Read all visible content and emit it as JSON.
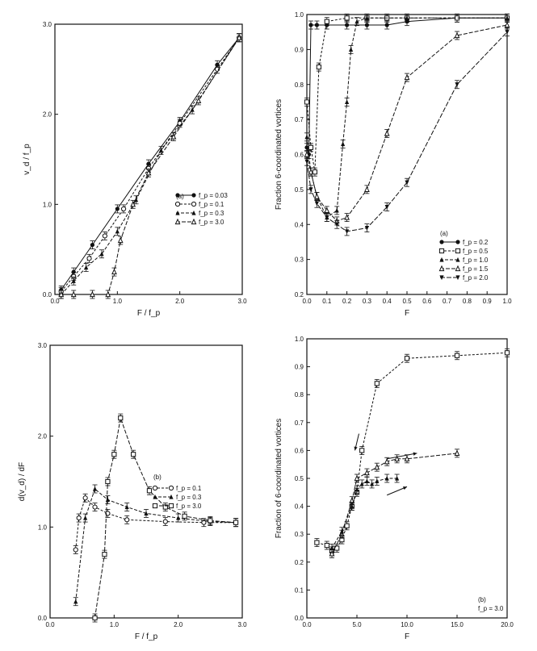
{
  "chart_data": [
    {
      "id": "tl",
      "type": "line",
      "panel_tag": "(a)",
      "xlabel": "F / f_p",
      "ylabel": "v_d / f_p",
      "xlim": [
        0.0,
        3.0
      ],
      "ylim": [
        0.0,
        3.0
      ],
      "xticks": [
        "0.0",
        "1.0",
        "2.0",
        "3.0"
      ],
      "yticks": [
        "0.0",
        "1.0",
        "2.0",
        "3.0"
      ],
      "legend": [
        "f_p = 0.03",
        "f_p = 0.1",
        "f_p = 0.3",
        "f_p = 3.0"
      ],
      "series": [
        {
          "name": "f_p = 0.03",
          "marker": "filled-circle",
          "dash": "",
          "points": [
            [
              0.1,
              0.05
            ],
            [
              0.3,
              0.25
            ],
            [
              0.6,
              0.55
            ],
            [
              1.0,
              0.95
            ],
            [
              1.5,
              1.45
            ],
            [
              2.0,
              1.92
            ],
            [
              2.6,
              2.55
            ],
            [
              2.95,
              2.85
            ]
          ]
        },
        {
          "name": "f_p = 0.1",
          "marker": "open-circle",
          "dash": "3,2",
          "points": [
            [
              0.1,
              0.03
            ],
            [
              0.3,
              0.2
            ],
            [
              0.55,
              0.4
            ],
            [
              0.8,
              0.65
            ],
            [
              1.1,
              0.95
            ],
            [
              1.5,
              1.4
            ],
            [
              2.0,
              1.9
            ],
            [
              2.6,
              2.5
            ],
            [
              2.95,
              2.85
            ]
          ]
        },
        {
          "name": "f_p = 0.3",
          "marker": "filled-triangle",
          "dash": "4,2",
          "points": [
            [
              0.1,
              0.0
            ],
            [
              0.3,
              0.15
            ],
            [
              0.5,
              0.3
            ],
            [
              0.75,
              0.45
            ],
            [
              1.0,
              0.7
            ],
            [
              1.3,
              1.05
            ],
            [
              1.7,
              1.6
            ],
            [
              2.2,
              2.05
            ],
            [
              2.95,
              2.85
            ]
          ]
        },
        {
          "name": "f_p = 3.0",
          "marker": "open-triangle",
          "dash": "5,2",
          "points": [
            [
              0.1,
              0.0
            ],
            [
              0.3,
              0.0
            ],
            [
              0.6,
              0.0
            ],
            [
              0.85,
              0.0
            ],
            [
              0.95,
              0.25
            ],
            [
              1.05,
              0.6
            ],
            [
              1.25,
              1.0
            ],
            [
              1.5,
              1.35
            ],
            [
              1.9,
              1.75
            ],
            [
              2.3,
              2.15
            ],
            [
              2.95,
              2.85
            ]
          ]
        }
      ]
    },
    {
      "id": "tr",
      "type": "line",
      "panel_tag": "(a)",
      "xlabel": "F",
      "ylabel": "Fraction 6-coordinated vortices",
      "xlim": [
        0.0,
        1.0
      ],
      "ylim": [
        0.2,
        1.0
      ],
      "xticks": [
        "0.0",
        "0.1",
        "0.2",
        "0.3",
        "0.4",
        "0.5",
        "0.6",
        "0.7",
        "0.8",
        "0.9",
        "1.0"
      ],
      "yticks": [
        "0.2",
        "0.3",
        "0.4",
        "0.5",
        "0.6",
        "0.7",
        "0.8",
        "0.9",
        "1.0"
      ],
      "legend": [
        "f_p = 0.2",
        "f_p = 0.5",
        "f_p = 1.0",
        "f_p = 1.5",
        "f_p = 2.0"
      ],
      "series": [
        {
          "name": "f_p = 0.2",
          "marker": "filled-circle",
          "dash": "",
          "points": [
            [
              0.0,
              0.62
            ],
            [
              0.01,
              0.6
            ],
            [
              0.02,
              0.97
            ],
            [
              0.05,
              0.97
            ],
            [
              0.1,
              0.97
            ],
            [
              0.2,
              0.97
            ],
            [
              0.3,
              0.97
            ],
            [
              0.4,
              0.97
            ],
            [
              0.5,
              0.98
            ],
            [
              0.75,
              0.99
            ],
            [
              1.0,
              0.99
            ]
          ]
        },
        {
          "name": "f_p = 0.5",
          "marker": "open-square",
          "dash": "3,2",
          "points": [
            [
              0.0,
              0.75
            ],
            [
              0.02,
              0.62
            ],
            [
              0.04,
              0.55
            ],
            [
              0.06,
              0.85
            ],
            [
              0.1,
              0.98
            ],
            [
              0.2,
              0.99
            ],
            [
              0.3,
              0.99
            ],
            [
              0.4,
              0.99
            ],
            [
              0.5,
              0.99
            ],
            [
              0.75,
              0.99
            ],
            [
              1.0,
              0.99
            ]
          ]
        },
        {
          "name": "f_p = 1.0",
          "marker": "filled-triangle",
          "dash": "4,2",
          "points": [
            [
              0.0,
              0.65
            ],
            [
              0.02,
              0.55
            ],
            [
              0.05,
              0.48
            ],
            [
              0.1,
              0.42
            ],
            [
              0.15,
              0.44
            ],
            [
              0.18,
              0.63
            ],
            [
              0.2,
              0.75
            ],
            [
              0.22,
              0.9
            ],
            [
              0.25,
              0.98
            ],
            [
              0.3,
              0.99
            ],
            [
              0.5,
              0.99
            ],
            [
              1.0,
              0.99
            ]
          ]
        },
        {
          "name": "f_p = 1.5",
          "marker": "open-triangle",
          "dash": "5,2",
          "points": [
            [
              0.0,
              0.6
            ],
            [
              0.02,
              0.55
            ],
            [
              0.05,
              0.48
            ],
            [
              0.1,
              0.44
            ],
            [
              0.15,
              0.41
            ],
            [
              0.2,
              0.42
            ],
            [
              0.3,
              0.5
            ],
            [
              0.4,
              0.66
            ],
            [
              0.5,
              0.82
            ],
            [
              0.75,
              0.94
            ],
            [
              1.0,
              0.97
            ]
          ]
        },
        {
          "name": "f_p = 2.0",
          "marker": "filled-triangle-down",
          "dash": "6,2",
          "points": [
            [
              0.0,
              0.58
            ],
            [
              0.02,
              0.5
            ],
            [
              0.05,
              0.46
            ],
            [
              0.1,
              0.42
            ],
            [
              0.15,
              0.4
            ],
            [
              0.2,
              0.38
            ],
            [
              0.3,
              0.39
            ],
            [
              0.4,
              0.45
            ],
            [
              0.5,
              0.52
            ],
            [
              0.75,
              0.8
            ],
            [
              1.0,
              0.95
            ]
          ]
        }
      ]
    },
    {
      "id": "bl",
      "type": "line",
      "panel_tag": "(b)",
      "xlabel": "F / f_p",
      "ylabel": "d(v_d) / dF",
      "xlim": [
        0.0,
        3.0
      ],
      "ylim": [
        0.0,
        3.0
      ],
      "xticks": [
        "0.0",
        "1.0",
        "2.0",
        "3.0"
      ],
      "yticks": [
        "0.0",
        "1.0",
        "2.0",
        "3.0"
      ],
      "legend": [
        "f_p = 0.1",
        "f_p = 0.3",
        "f_p = 3.0"
      ],
      "series": [
        {
          "name": "f_p = 0.1",
          "marker": "open-circle",
          "dash": "3,2",
          "points": [
            [
              0.4,
              0.75
            ],
            [
              0.45,
              1.1
            ],
            [
              0.55,
              1.32
            ],
            [
              0.7,
              1.22
            ],
            [
              0.9,
              1.15
            ],
            [
              1.2,
              1.08
            ],
            [
              1.8,
              1.06
            ],
            [
              2.4,
              1.05
            ],
            [
              2.9,
              1.05
            ]
          ]
        },
        {
          "name": "f_p = 0.3",
          "marker": "filled-triangle",
          "dash": "4,2",
          "points": [
            [
              0.4,
              0.18
            ],
            [
              0.55,
              1.1
            ],
            [
              0.7,
              1.42
            ],
            [
              0.9,
              1.3
            ],
            [
              1.2,
              1.22
            ],
            [
              1.5,
              1.15
            ],
            [
              2.0,
              1.1
            ],
            [
              2.5,
              1.06
            ],
            [
              2.9,
              1.05
            ]
          ]
        },
        {
          "name": "f_p = 3.0",
          "marker": "open-square",
          "dash": "5,2",
          "points": [
            [
              0.7,
              0.0
            ],
            [
              0.85,
              0.7
            ],
            [
              0.9,
              1.5
            ],
            [
              1.0,
              1.8
            ],
            [
              1.1,
              2.2
            ],
            [
              1.3,
              1.8
            ],
            [
              1.55,
              1.4
            ],
            [
              1.8,
              1.22
            ],
            [
              2.1,
              1.12
            ],
            [
              2.5,
              1.07
            ],
            [
              2.9,
              1.05
            ]
          ]
        }
      ]
    },
    {
      "id": "br",
      "type": "line",
      "panel_tag": "(b)",
      "panel_subtag": "f_p = 3.0",
      "xlabel": "F",
      "ylabel": "Fraction of 6-coordinated vortices",
      "xlim": [
        0.0,
        20.0
      ],
      "ylim": [
        0.0,
        1.0
      ],
      "xticks": [
        "0.0",
        "5.0",
        "10.0",
        "15.0",
        "20.0"
      ],
      "yticks": [
        "0.0",
        "0.1",
        "0.2",
        "0.3",
        "0.4",
        "0.5",
        "0.6",
        "0.7",
        "0.8",
        "0.9",
        "1.0"
      ],
      "series": [
        {
          "name": "",
          "marker": "open-square",
          "dash": "3,2",
          "points": [
            [
              1.0,
              0.27
            ],
            [
              2.0,
              0.26
            ],
            [
              2.5,
              0.24
            ],
            [
              3.0,
              0.25
            ],
            [
              3.5,
              0.28
            ],
            [
              4.0,
              0.33
            ],
            [
              4.5,
              0.4
            ],
            [
              5.0,
              0.45
            ],
            [
              5.5,
              0.6
            ],
            [
              7.0,
              0.84
            ],
            [
              10.0,
              0.93
            ],
            [
              15.0,
              0.94
            ],
            [
              20.0,
              0.95
            ]
          ]
        },
        {
          "name": "",
          "marker": "open-triangle",
          "dash": "5,2",
          "points": [
            [
              2.5,
              0.23
            ],
            [
              3.5,
              0.3
            ],
            [
              4.5,
              0.42
            ],
            [
              5.0,
              0.5
            ],
            [
              6.0,
              0.52
            ],
            [
              7.0,
              0.54
            ],
            [
              8.0,
              0.56
            ],
            [
              9.0,
              0.57
            ],
            [
              10.0,
              0.57
            ],
            [
              15.0,
              0.59
            ]
          ]
        },
        {
          "name": "",
          "marker": "filled-triangle",
          "dash": "4,2",
          "points": [
            [
              2.5,
              0.25
            ],
            [
              3.5,
              0.31
            ],
            [
              4.5,
              0.4
            ],
            [
              5.0,
              0.46
            ],
            [
              5.5,
              0.48
            ],
            [
              6.0,
              0.49
            ],
            [
              6.5,
              0.48
            ],
            [
              7.0,
              0.49
            ],
            [
              8.0,
              0.5
            ],
            [
              9.0,
              0.5
            ]
          ]
        }
      ],
      "arrows": [
        {
          "from": [
            5.2,
            0.66
          ],
          "to": [
            4.8,
            0.6
          ]
        },
        {
          "from": [
            8.0,
            0.57
          ],
          "to": [
            11.0,
            0.59
          ]
        },
        {
          "from": [
            8.0,
            0.44
          ],
          "to": [
            10.0,
            0.47
          ]
        }
      ]
    }
  ]
}
